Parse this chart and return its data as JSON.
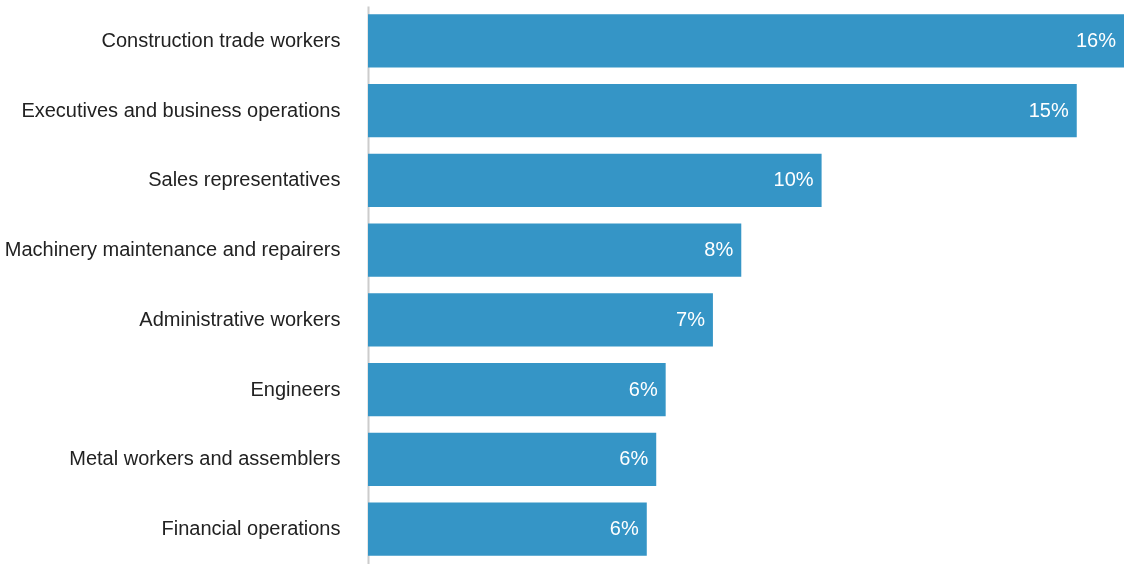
{
  "chart_data": {
    "type": "bar",
    "orientation": "horizontal",
    "tick_labels": "y",
    "categories": [
      "Construction trade workers",
      "Executives and business operations",
      "Sales representatives",
      "Machinery maintenance and repairers",
      "Administrative workers",
      "Engineers",
      "Metal workers and assemblers",
      "Financial operations"
    ],
    "values": [
      16,
      15,
      9.6,
      7.9,
      7.3,
      6.3,
      6.1,
      5.9
    ],
    "value_labels": [
      "16%",
      "15%",
      "10%",
      "8%",
      "7%",
      "6%",
      "6%",
      "6%"
    ],
    "color": "#3595c6",
    "xlim": [
      0,
      16
    ]
  }
}
